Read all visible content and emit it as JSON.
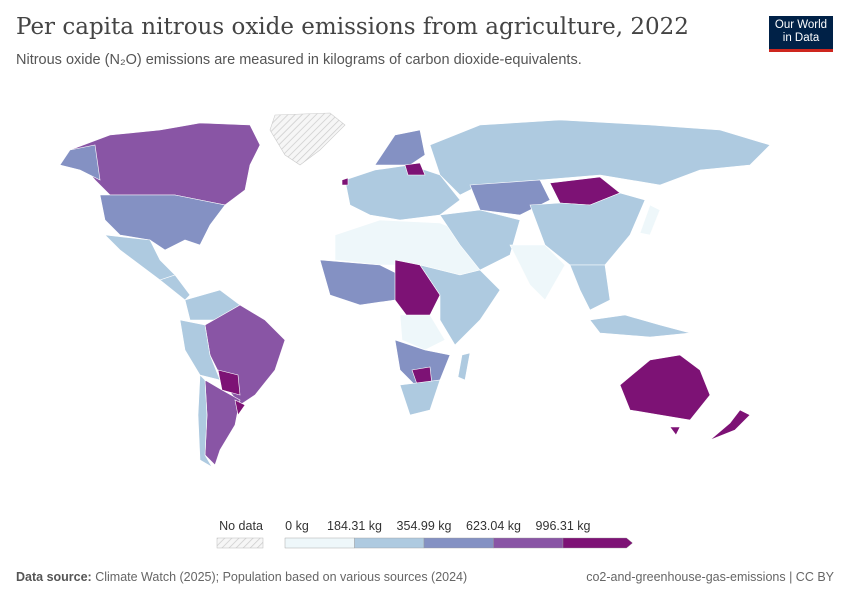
{
  "header": {
    "title": "Per capita nitrous oxide emissions from agriculture, 2022",
    "subtitle": "Nitrous oxide (N₂O) emissions are measured in kilograms of carbon dioxide-equivalents.",
    "logo": "Our World in Data"
  },
  "legend": {
    "no_data_label": "No data",
    "bins": [
      "0 kg",
      "184.31 kg",
      "354.99 kg",
      "623.04 kg",
      "996.31 kg"
    ],
    "colors": [
      "#eef7fa",
      "#aecae0",
      "#8491c3",
      "#8955a5",
      "#7d1275"
    ],
    "no_data_pattern": "hatched-gray"
  },
  "footer": {
    "source_label": "Data source:",
    "source_text": "Climate Watch (2025); Population based on various sources (2024)",
    "slug": "co2-and-greenhouse-gas-emissions | CC BY"
  }
}
